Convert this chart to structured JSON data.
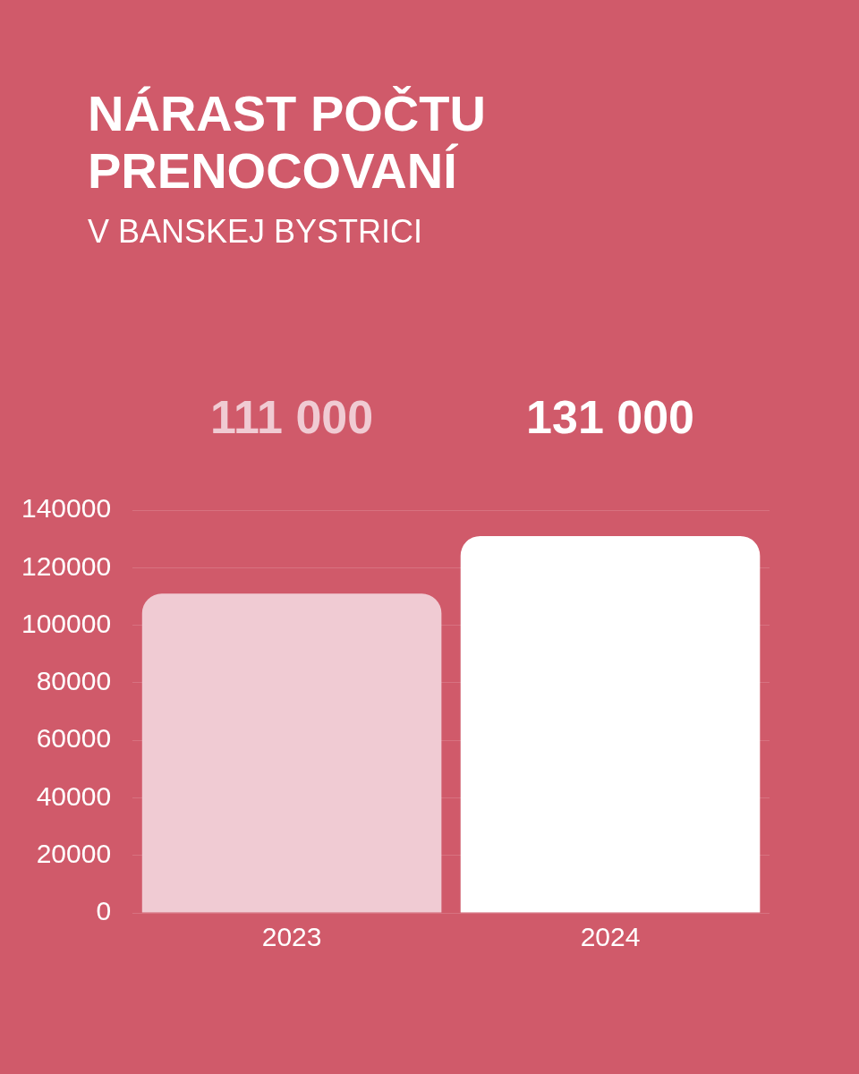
{
  "chart_data": {
    "type": "bar",
    "title": "NÁRAST POČTU PRENOCOVANÍ",
    "subtitle": "V BANSKEJ BYSTRICI",
    "categories": [
      "2023",
      "2024"
    ],
    "values": [
      111000,
      131000
    ],
    "colors": [
      "#f0cbd3",
      "#ffffff"
    ],
    "value_labels": [
      "111 000",
      "131 000"
    ],
    "ylim": [
      0,
      140000
    ],
    "yticks": [
      0,
      20000,
      40000,
      60000,
      80000,
      100000,
      120000,
      140000
    ],
    "grid": "y",
    "legend": false
  }
}
